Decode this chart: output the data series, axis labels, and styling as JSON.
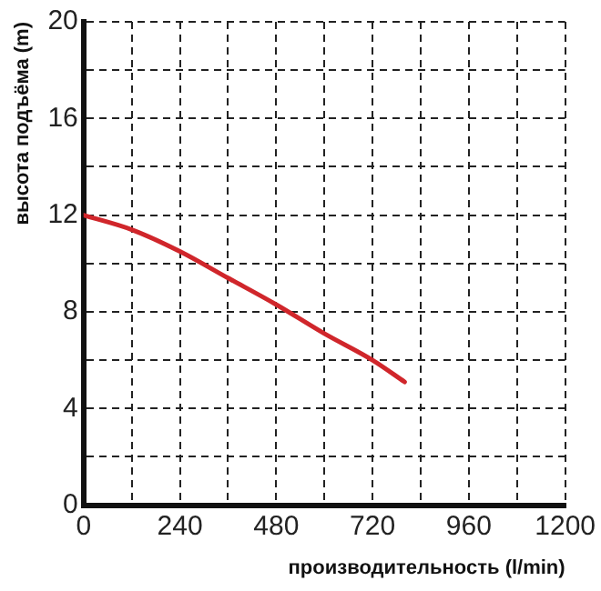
{
  "chart_data": {
    "type": "line",
    "xlabel": "производительность (l/min)",
    "ylabel": "высота подъёма (m)",
    "x": [
      0,
      120,
      240,
      360,
      480,
      600,
      720,
      800
    ],
    "series": [
      {
        "color": "#d0262b",
        "values": [
          12,
          11.4,
          10.5,
          9.4,
          8.3,
          7.1,
          6,
          5.1
        ]
      }
    ],
    "xlim": [
      0,
      1200
    ],
    "ylim": [
      0,
      20
    ],
    "xticks": [
      0,
      {
        "value": 120,
        "label": null
      },
      240,
      {
        "value": 360,
        "label": null
      },
      480,
      {
        "value": 600,
        "label": null
      },
      720,
      {
        "value": 840,
        "label": null
      },
      960,
      {
        "value": 1080,
        "label": null
      },
      1200
    ],
    "yticks": [
      0,
      {
        "value": 2,
        "label": null
      },
      4,
      {
        "value": 6,
        "label": null
      },
      8,
      {
        "value": 10,
        "label": null
      },
      12,
      {
        "value": 14,
        "label": null
      },
      16,
      {
        "value": 18,
        "label": null
      },
      20
    ],
    "grid": true,
    "marker": "none",
    "line_style": "solid"
  }
}
